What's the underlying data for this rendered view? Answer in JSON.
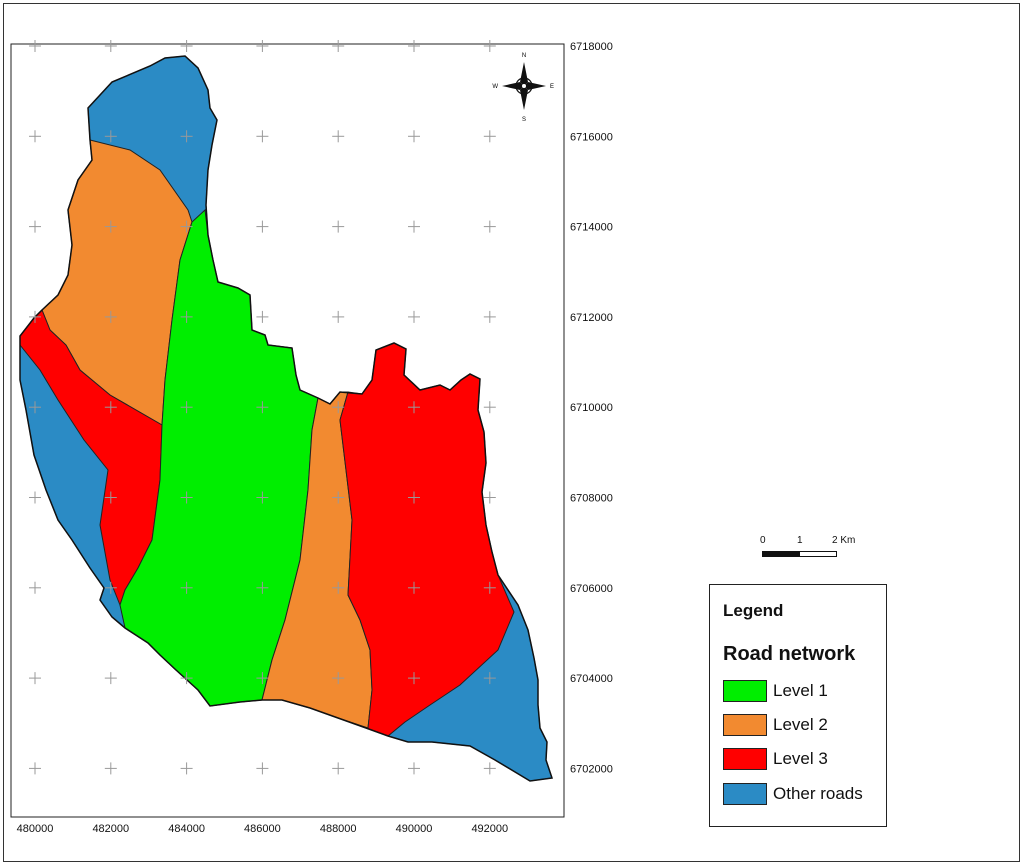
{
  "map": {
    "x_ticks": [
      "480000",
      "482000",
      "484000",
      "486000",
      "488000",
      "490000",
      "492000"
    ],
    "y_ticks": [
      "6718000",
      "6716000",
      "6714000",
      "6712000",
      "6710000",
      "6708000",
      "6706000",
      "6704000",
      "6702000"
    ]
  },
  "compass": {
    "n": "N",
    "s": "S",
    "e": "E",
    "w": "W"
  },
  "scale_bar": {
    "labels": [
      "0",
      "1",
      "2 Km"
    ]
  },
  "legend": {
    "title": "Legend",
    "subtitle": "Road network",
    "items": [
      {
        "label": "Level 1",
        "color": "#00ee00"
      },
      {
        "label": "Level 2",
        "color": "#f28a30"
      },
      {
        "label": "Level 3",
        "color": "#ff0000"
      },
      {
        "label": "Other roads",
        "color": "#2b8bc5"
      }
    ]
  },
  "colors": {
    "level1": "#00ee00",
    "level2": "#f28a30",
    "level3": "#ff0000",
    "other": "#2b8bc5"
  }
}
